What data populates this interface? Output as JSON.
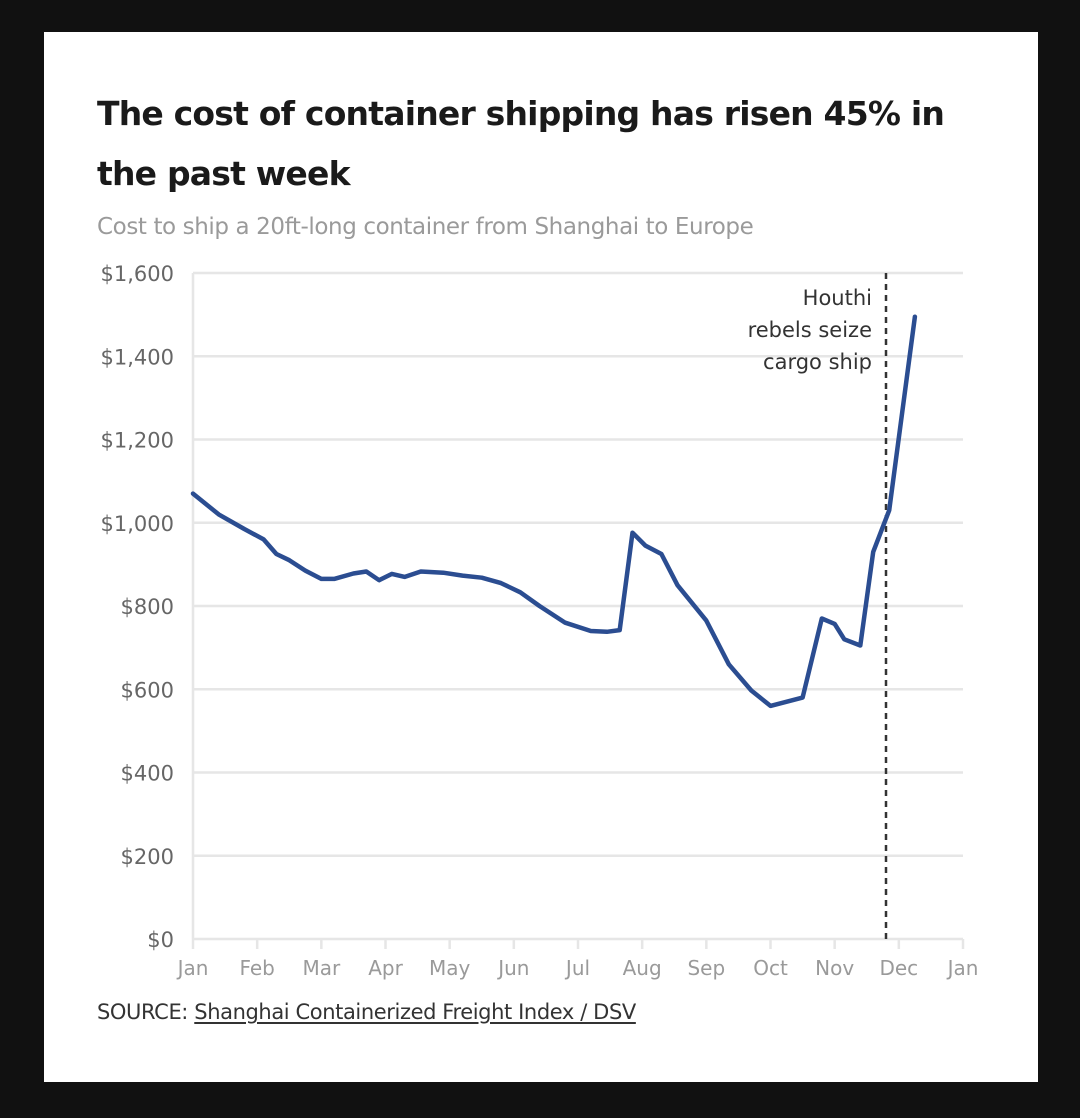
{
  "title": "The cost of container shipping has risen 45% in the past week",
  "subtitle": "Cost to ship a 20ft-long container from Shanghai to Europe",
  "source": {
    "prefix": "SOURCE: ",
    "link_text": "Shanghai Containerized Freight Index / DSV"
  },
  "colors": {
    "line": "#2b4d91",
    "grid": "#e6e6e6",
    "axis_text": "#666666",
    "month_text": "#9a9a9a",
    "annotation_line": "#333333"
  },
  "chart_data": {
    "type": "line",
    "title": "The cost of container shipping has risen 45% in the past week",
    "subtitle": "Cost to ship a 20ft-long container from Shanghai to Europe",
    "xlabel": "",
    "ylabel": "",
    "ylim": [
      0,
      1600
    ],
    "y_ticks": [
      0,
      200,
      400,
      600,
      800,
      1000,
      1200,
      1400,
      1600
    ],
    "y_tick_labels": [
      "$0",
      "$200",
      "$400",
      "$600",
      "$800",
      "$1,000",
      "$1,200",
      "$1,400",
      "$1,600"
    ],
    "x_tick_labels": [
      "Jan",
      "Feb",
      "Mar",
      "Apr",
      "May",
      "Jun",
      "Jul",
      "Aug",
      "Sep",
      "Oct",
      "Nov",
      "Dec",
      "Jan"
    ],
    "x_range_months": [
      0,
      12
    ],
    "grid": true,
    "legend": "none",
    "series": [
      {
        "x_months": [
          0,
          0.4,
          0.8,
          1.1,
          1.3,
          1.5,
          1.75,
          2.0,
          2.2,
          2.5,
          2.7,
          2.9,
          3.1,
          3.3,
          3.55,
          3.9,
          4.2,
          4.5,
          4.8,
          5.1,
          5.4,
          5.8,
          6.2,
          6.45,
          6.65,
          6.85,
          7.05,
          7.3,
          7.55,
          8.0,
          8.35,
          8.7,
          9.0,
          9.5,
          9.8,
          10.0,
          10.15,
          10.4,
          10.6,
          10.85,
          11.25,
          11.55,
          11.7
        ],
        "values": [
          1070,
          1020,
          985,
          960,
          925,
          910,
          885,
          865,
          865,
          878,
          883,
          862,
          877,
          870,
          883,
          880,
          873,
          868,
          855,
          833,
          800,
          760,
          740,
          738,
          742,
          976,
          945,
          925,
          850,
          765,
          660,
          597,
          560,
          580,
          770,
          757,
          720,
          705,
          930,
          1030,
          1495,
          1495,
          1495
        ]
      }
    ],
    "annotations": [
      {
        "x_months": 10.8,
        "lines": [
          "Houthi",
          "rebels seize",
          "cargo ship"
        ],
        "style": "dashed-vertical"
      }
    ]
  }
}
